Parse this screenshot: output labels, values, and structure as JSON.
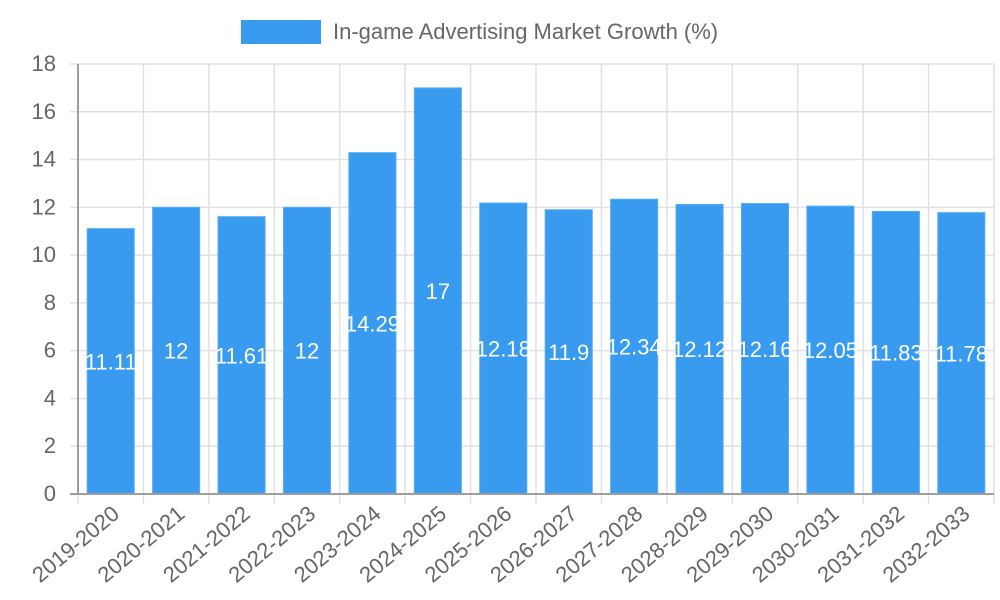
{
  "chart_data": {
    "type": "bar",
    "title": "",
    "xlabel": "",
    "ylabel": "",
    "legend": {
      "position": "top",
      "entries": [
        "In-game Advertising Market Growth (%)"
      ]
    },
    "categories": [
      "2019-2020",
      "2020-2021",
      "2021-2022",
      "2022-2023",
      "2023-2024",
      "2024-2025",
      "2025-2026",
      "2026-2027",
      "2027-2028",
      "2028-2029",
      "2029-2030",
      "2030-2031",
      "2031-2032",
      "2032-2033"
    ],
    "series": [
      {
        "name": "In-game Advertising Market Growth (%)",
        "color": "#389bef",
        "values": [
          11.11,
          12,
          11.61,
          12,
          14.29,
          17,
          12.18,
          11.9,
          12.34,
          12.12,
          12.16,
          12.05,
          11.83,
          11.78
        ]
      }
    ],
    "ylim": [
      0,
      18
    ],
    "yticks": [
      0,
      2,
      4,
      6,
      8,
      10,
      12,
      14,
      16,
      18
    ],
    "grid": true,
    "data_labels": true
  },
  "legend": {
    "label": "In-game Advertising Market Growth (%)"
  }
}
